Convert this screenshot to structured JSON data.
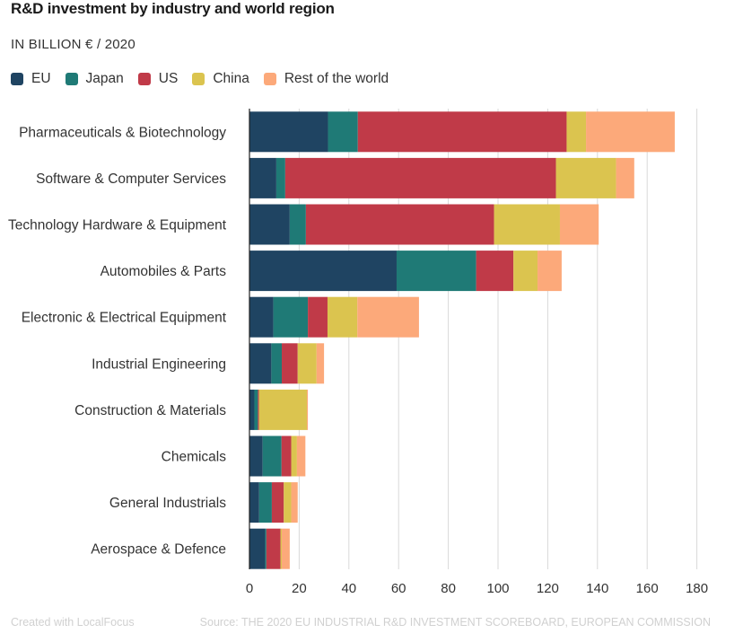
{
  "header": {
    "title": "R&D investment by industry and world region",
    "subtitle": "IN BILLION € / 2020"
  },
  "colors": {
    "EU": "#1f4462",
    "Japan": "#1f7a76",
    "US": "#c03a48",
    "China": "#dbc44f",
    "Rest of the world": "#fca97a",
    "grid": "#d9d9d9",
    "axis": "#222222",
    "text": "#333333"
  },
  "footer": {
    "created": "Created with LocalFocus",
    "source": "Source: THE 2020 EU INDUSTRIAL R&D INVESTMENT SCOREBOARD, EUROPEAN COMMISSION"
  },
  "chart_data": {
    "type": "bar",
    "orientation": "horizontal",
    "stacked": true,
    "title": "R&D investment by industry and world region",
    "subtitle": "IN BILLION € / 2020",
    "xlabel": "",
    "ylabel": "",
    "xlim": [
      0,
      180
    ],
    "xticks": [
      0,
      20,
      40,
      60,
      80,
      100,
      120,
      140,
      160,
      180
    ],
    "grid": true,
    "legend_position": "top-left",
    "categories": [
      "Pharmaceuticals & Biotechnology",
      "Software & Computer Services",
      "Technology Hardware & Equipment",
      "Automobiles & Parts",
      "Electronic & Electrical Equipment",
      "Industrial Engineering",
      "Construction & Materials",
      "Chemicals",
      "General Industrials",
      "Aerospace & Defence"
    ],
    "series": [
      {
        "name": "EU",
        "values": [
          31.6,
          10.8,
          16.2,
          59.2,
          9.6,
          8.8,
          2.0,
          5.3,
          3.9,
          6.3
        ]
      },
      {
        "name": "Japan",
        "values": [
          12.0,
          3.6,
          6.5,
          32.0,
          13.9,
          4.2,
          1.4,
          7.6,
          5.1,
          0.5
        ]
      },
      {
        "name": "US",
        "values": [
          84.0,
          108.9,
          75.7,
          15.0,
          7.9,
          6.4,
          0.4,
          3.9,
          4.8,
          5.7
        ]
      },
      {
        "name": "China",
        "values": [
          7.8,
          24.2,
          26.5,
          9.7,
          12.0,
          7.6,
          19.3,
          2.3,
          3.0,
          0.5
        ]
      },
      {
        "name": "Rest of the world",
        "values": [
          35.7,
          7.3,
          15.6,
          9.7,
          24.8,
          3.0,
          0.4,
          3.4,
          2.6,
          3.2
        ]
      }
    ]
  }
}
